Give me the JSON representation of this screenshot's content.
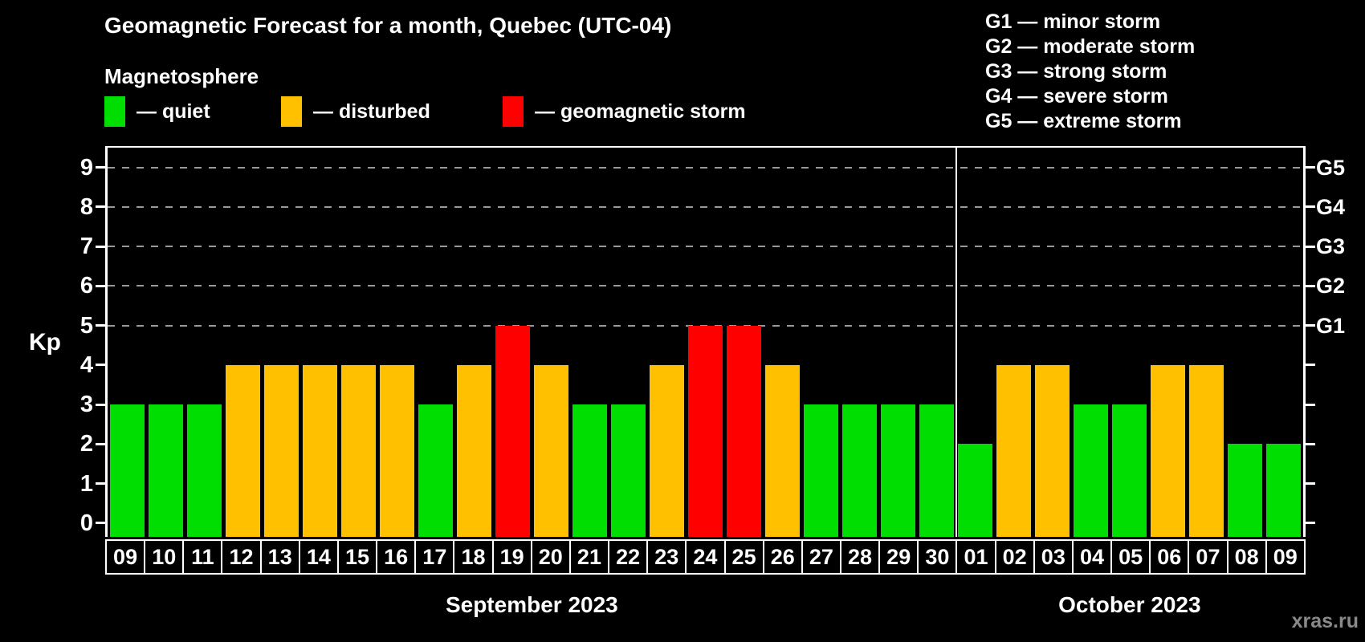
{
  "title": "Geomagnetic Forecast for a month, Quebec (UTC-04)",
  "subtitle": "Magnetosphere",
  "legend": {
    "items": [
      {
        "label": "— quiet",
        "level": "quiet",
        "color": "#00dd00"
      },
      {
        "label": "— disturbed",
        "level": "disturbed",
        "color": "#ffc000"
      },
      {
        "label": "— geomagnetic storm",
        "level": "storm",
        "color": "#ff0000"
      }
    ]
  },
  "g_scale": {
    "items": [
      {
        "text": "G1 — minor storm"
      },
      {
        "text": "G2 — moderate storm"
      },
      {
        "text": "G3 — strong storm"
      },
      {
        "text": "G4 — severe storm"
      },
      {
        "text": "G5 — extreme storm"
      }
    ]
  },
  "watermark": "xras.ru",
  "chart_data": {
    "type": "bar",
    "title": "Geomagnetic Forecast for a month, Quebec (UTC-04)",
    "y_axis": {
      "label": "Kp",
      "ticks": [
        0,
        1,
        2,
        3,
        4,
        5,
        6,
        7,
        8,
        9
      ],
      "range": [
        -0.35,
        9.5
      ]
    },
    "right_axis_labels": [
      {
        "text": "G1",
        "kp": 5
      },
      {
        "text": "G2",
        "kp": 6
      },
      {
        "text": "G3",
        "kp": 7
      },
      {
        "text": "G4",
        "kp": 8
      },
      {
        "text": "G5",
        "kp": 9
      }
    ],
    "gridline_kp": [
      5,
      6,
      7,
      8,
      9
    ],
    "colors": {
      "quiet": "#00dd00",
      "disturbed": "#ffc000",
      "storm": "#ff0000",
      "axis": "#ffffff",
      "grid": "#999999",
      "background": "#000000"
    },
    "months": [
      {
        "name": "September 2023",
        "days": [
          "09",
          "10",
          "11",
          "12",
          "13",
          "14",
          "15",
          "16",
          "17",
          "18",
          "19",
          "20",
          "21",
          "22",
          "23",
          "24",
          "25",
          "26",
          "27",
          "28",
          "29",
          "30"
        ],
        "values": [
          3,
          3,
          3,
          4,
          4,
          4,
          4,
          4,
          3,
          4,
          5,
          4,
          3,
          3,
          4,
          5,
          5,
          4,
          3,
          3,
          3,
          3
        ],
        "levels": [
          "quiet",
          "quiet",
          "quiet",
          "disturbed",
          "disturbed",
          "disturbed",
          "disturbed",
          "disturbed",
          "quiet",
          "disturbed",
          "storm",
          "disturbed",
          "quiet",
          "quiet",
          "disturbed",
          "storm",
          "storm",
          "disturbed",
          "quiet",
          "quiet",
          "quiet",
          "quiet"
        ]
      },
      {
        "name": "October 2023",
        "days": [
          "01",
          "02",
          "03",
          "04",
          "05",
          "06",
          "07",
          "08",
          "09"
        ],
        "values": [
          2,
          4,
          4,
          3,
          3,
          4,
          4,
          2,
          2
        ],
        "levels": [
          "quiet",
          "disturbed",
          "disturbed",
          "quiet",
          "quiet",
          "disturbed",
          "disturbed",
          "quiet",
          "quiet"
        ]
      }
    ]
  }
}
